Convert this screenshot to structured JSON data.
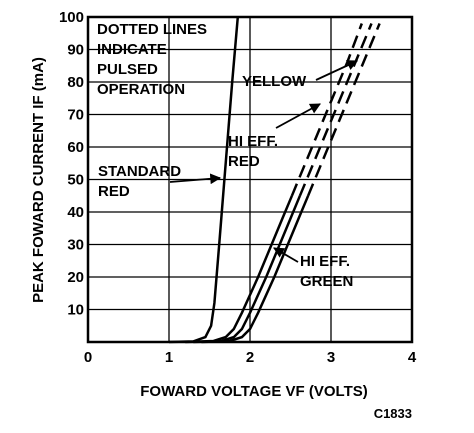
{
  "chart_data": {
    "type": "line",
    "title": "",
    "xlabel": "FOWARD VOLTAGE VF (VOLTS)",
    "ylabel": "PEAK FOWARD CURRENT IF (mA)",
    "xlim": [
      0,
      4
    ],
    "ylim": [
      0,
      100
    ],
    "x_ticks": [
      "0",
      "1",
      "2",
      "3",
      "4"
    ],
    "y_ticks": [
      "10",
      "20",
      "30",
      "40",
      "50",
      "60",
      "70",
      "80",
      "90",
      "100"
    ],
    "grid": true,
    "note": "DOTTED LINES INDICATE PULSED OPERATION",
    "figure_code": "C1833",
    "series": [
      {
        "name": "STANDARD RED",
        "label_lines": [
          "STANDARD",
          "RED"
        ],
        "x": [
          1.0,
          1.3,
          1.45,
          1.52,
          1.56,
          1.62,
          1.7,
          1.78,
          1.85
        ],
        "y": [
          0,
          0.2,
          1.5,
          5,
          12,
          30,
          55,
          80,
          100
        ],
        "dashed_from_y": null
      },
      {
        "name": "YELLOW",
        "label_lines": [
          "YELLOW"
        ],
        "x": [
          1.2,
          1.55,
          1.7,
          1.8,
          1.9,
          2.1,
          2.4,
          2.7,
          3.0,
          3.2,
          3.38
        ],
        "y": [
          0,
          0.3,
          1.5,
          4,
          9,
          20,
          38,
          56,
          74,
          86,
          98
        ],
        "dashed_from_y": 45
      },
      {
        "name": "HI EFF. RED",
        "label_lines": [
          "HI EFF.",
          "RED"
        ],
        "x": [
          1.3,
          1.65,
          1.8,
          1.9,
          2.0,
          2.2,
          2.5,
          2.8,
          3.1,
          3.3,
          3.5
        ],
        "y": [
          0,
          0.3,
          1.5,
          4,
          9,
          20,
          38,
          56,
          74,
          86,
          98
        ],
        "dashed_from_y": 45
      },
      {
        "name": "HI EFF. GREEN",
        "label_lines": [
          "HI EFF.",
          "GREEN"
        ],
        "x": [
          1.4,
          1.75,
          1.9,
          2.0,
          2.1,
          2.3,
          2.6,
          2.9,
          3.2,
          3.4,
          3.6
        ],
        "y": [
          0,
          0.3,
          1.5,
          4,
          9,
          20,
          38,
          56,
          74,
          86,
          98
        ],
        "dashed_from_y": 45
      }
    ]
  }
}
